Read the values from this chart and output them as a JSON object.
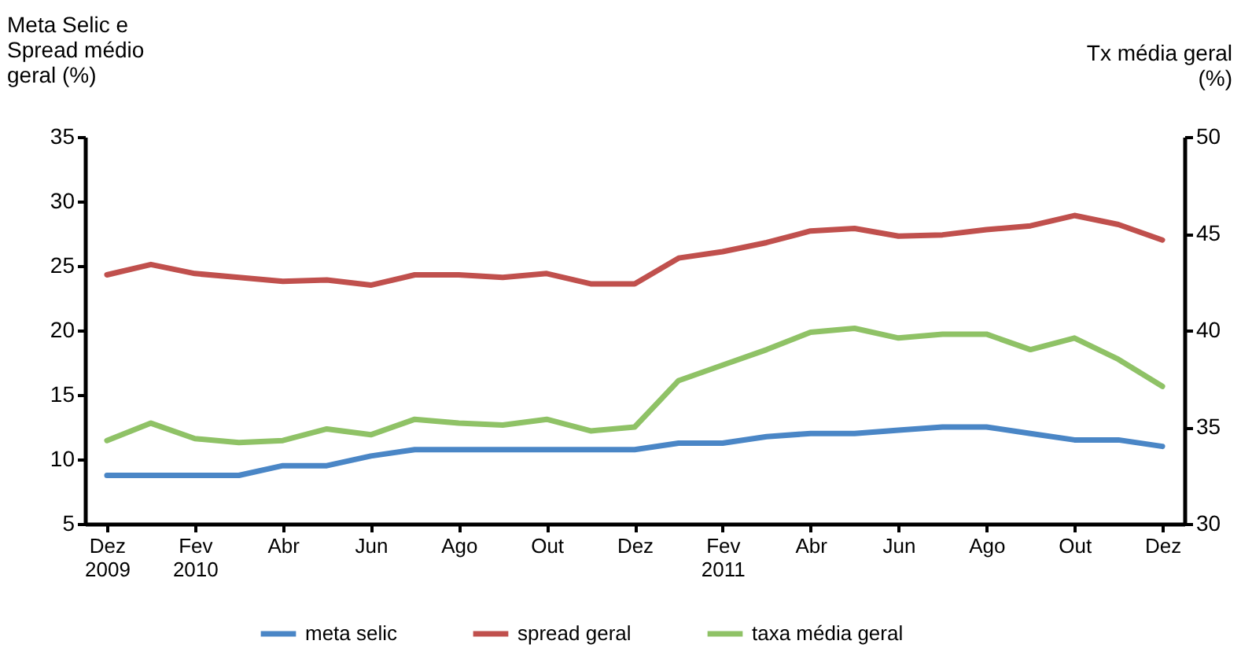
{
  "chart_data": {
    "type": "line",
    "categories": [
      "Dez 2009",
      null,
      "Fev 2010",
      null,
      "Abr",
      null,
      "Jun",
      null,
      "Ago",
      null,
      "Out",
      null,
      "Dez",
      null,
      "Fev 2011",
      null,
      "Abr",
      null,
      "Jun",
      null,
      "Ago",
      null,
      "Out",
      null,
      "Dez"
    ],
    "ylabel": "Meta Selic e Spread médio geral (%)",
    "y2label": "Tx média geral (%)",
    "ylim": [
      5,
      35
    ],
    "yticks": [
      5,
      10,
      15,
      20,
      25,
      30,
      35
    ],
    "y2lim": [
      30,
      50
    ],
    "y2ticks": [
      30,
      35,
      40,
      45,
      50
    ],
    "grid": false,
    "legend": "bottom",
    "line_style": "solid",
    "marker": "none",
    "series": [
      {
        "name": "meta selic",
        "color": "#4a86c6",
        "values": [
          8.75,
          8.75,
          8.75,
          8.75,
          9.5,
          9.5,
          10.25,
          10.75,
          10.75,
          10.75,
          10.75,
          10.75,
          10.75,
          11.25,
          11.25,
          11.75,
          12,
          12,
          12.25,
          12.5,
          12.5,
          12,
          11.5,
          11.5,
          11
        ]
      },
      {
        "name": "spread geral",
        "color": "#c0504d",
        "values": [
          24.3,
          25.1,
          24.4,
          24.1,
          23.8,
          23.9,
          23.5,
          24.3,
          24.3,
          24.1,
          24.4,
          23.6,
          23.6,
          25.6,
          26.1,
          26.8,
          27.7,
          27.9,
          27.3,
          27.4,
          27.8,
          28.1,
          28.9,
          28.2,
          27.0
        ]
      },
      {
        "name": "taxa média geral",
        "color": "#8fc266",
        "axis": "y2",
        "values": [
          34.3,
          35.2,
          34.4,
          34.2,
          34.3,
          34.9,
          34.6,
          35.4,
          35.2,
          35.1,
          35.4,
          34.8,
          35.0,
          37.4,
          38.2,
          39.0,
          39.9,
          40.1,
          39.6,
          39.8,
          39.8,
          39.0,
          39.6,
          38.5,
          37.1
        ]
      }
    ]
  }
}
